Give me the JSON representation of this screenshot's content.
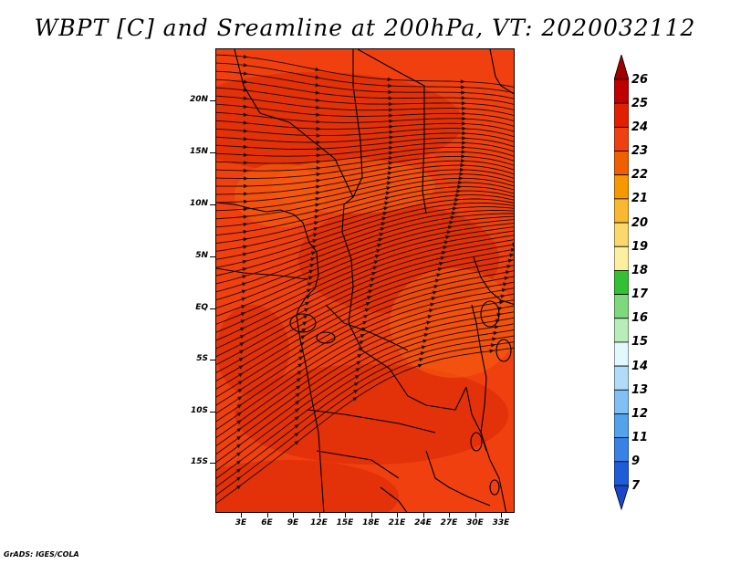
{
  "title": "WBPT [C] and Sreamline at 200hPa, VT: 2020032112",
  "footer": "GrADS: IGES/COLA",
  "map": {
    "lat_labels": [
      "20N",
      "15N",
      "10N",
      "5N",
      "EQ",
      "5S",
      "10S",
      "15S"
    ],
    "lon_labels": [
      "3E",
      "6E",
      "9E",
      "12E",
      "15E",
      "18E",
      "21E",
      "24E",
      "27E",
      "30E",
      "33E"
    ],
    "field_colors": {
      "dominant": "#f04010",
      "high": "#dc2a06",
      "moderate": "#f55a0e",
      "streamline": "#1a0d05",
      "coastline": "#000000"
    }
  },
  "legend": {
    "levels": [
      "26",
      "25",
      "24",
      "23",
      "22",
      "21",
      "20",
      "19",
      "18",
      "17",
      "16",
      "15",
      "14",
      "13",
      "12",
      "11",
      "9",
      "7"
    ],
    "colors": [
      "#a00000",
      "#c00000",
      "#e02000",
      "#f04010",
      "#f06000",
      "#f79800",
      "#f8b830",
      "#fad86c",
      "#fcf0a0",
      "#34c034",
      "#7ed97e",
      "#b8ecb8",
      "#e2f8ff",
      "#b0dcfa",
      "#80c0f4",
      "#52a2ec",
      "#3882e6",
      "#1f5cd8",
      "#1a48c8"
    ]
  }
}
